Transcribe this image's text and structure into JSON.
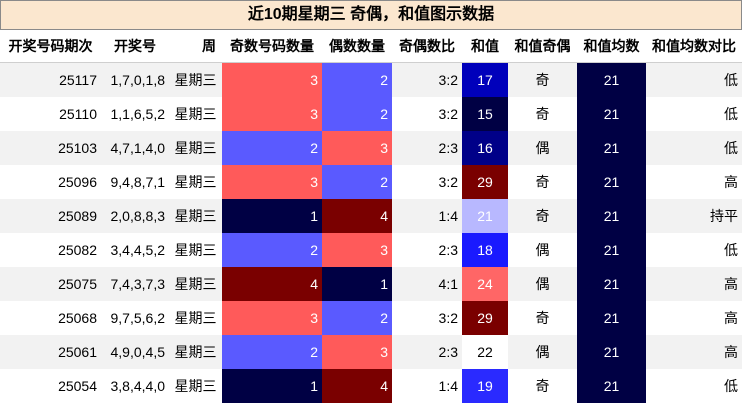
{
  "title": "近10期星期三 奇偶，和值图示数据",
  "headers": [
    "开奖号码期次",
    "开奖号",
    "周",
    "奇数号码数量",
    "偶数数量",
    "奇偶数比",
    "和值",
    "和值奇偶",
    "和值均数",
    "和值均数对比"
  ],
  "colors": {
    "odd_count": {
      "1": "#000044",
      "2": "#5a5aff",
      "3": "#ff5a5a",
      "4": "#7a0000"
    },
    "even_count": {
      "1": "#000044",
      "2": "#5a5aff",
      "3": "#ff5a5a",
      "4": "#7a0000"
    },
    "sum": {
      "15": "#000044",
      "16": "#000088",
      "17": "#0000bb",
      "18": "#1a1aff",
      "19": "#2a2aff",
      "21": "#b8b8ff",
      "22": "#ffffff",
      "24": "#ff6666",
      "29": "#7a0000"
    },
    "avg": "#000044"
  },
  "rows": [
    {
      "issue": "25117",
      "numbers": "1,7,0,1,8",
      "weekday": "星期三",
      "odd": "3",
      "even": "2",
      "ratio": "3:2",
      "sum": "17",
      "sum_parity": "奇",
      "avg": "21",
      "compare": "低"
    },
    {
      "issue": "25110",
      "numbers": "1,1,6,5,2",
      "weekday": "星期三",
      "odd": "3",
      "even": "2",
      "ratio": "3:2",
      "sum": "15",
      "sum_parity": "奇",
      "avg": "21",
      "compare": "低"
    },
    {
      "issue": "25103",
      "numbers": "4,7,1,4,0",
      "weekday": "星期三",
      "odd": "2",
      "even": "3",
      "ratio": "2:3",
      "sum": "16",
      "sum_parity": "偶",
      "avg": "21",
      "compare": "低"
    },
    {
      "issue": "25096",
      "numbers": "9,4,8,7,1",
      "weekday": "星期三",
      "odd": "3",
      "even": "2",
      "ratio": "3:2",
      "sum": "29",
      "sum_parity": "奇",
      "avg": "21",
      "compare": "高"
    },
    {
      "issue": "25089",
      "numbers": "2,0,8,8,3",
      "weekday": "星期三",
      "odd": "1",
      "even": "4",
      "ratio": "1:4",
      "sum": "21",
      "sum_parity": "奇",
      "avg": "21",
      "compare": "持平"
    },
    {
      "issue": "25082",
      "numbers": "3,4,4,5,2",
      "weekday": "星期三",
      "odd": "2",
      "even": "3",
      "ratio": "2:3",
      "sum": "18",
      "sum_parity": "偶",
      "avg": "21",
      "compare": "低"
    },
    {
      "issue": "25075",
      "numbers": "7,4,3,7,3",
      "weekday": "星期三",
      "odd": "4",
      "even": "1",
      "ratio": "4:1",
      "sum": "24",
      "sum_parity": "偶",
      "avg": "21",
      "compare": "高"
    },
    {
      "issue": "25068",
      "numbers": "9,7,5,6,2",
      "weekday": "星期三",
      "odd": "3",
      "even": "2",
      "ratio": "3:2",
      "sum": "29",
      "sum_parity": "奇",
      "avg": "21",
      "compare": "高"
    },
    {
      "issue": "25061",
      "numbers": "4,9,0,4,5",
      "weekday": "星期三",
      "odd": "2",
      "even": "3",
      "ratio": "2:3",
      "sum": "22",
      "sum_parity": "偶",
      "avg": "21",
      "compare": "高"
    },
    {
      "issue": "25054",
      "numbers": "3,8,4,4,0",
      "weekday": "星期三",
      "odd": "1",
      "even": "4",
      "ratio": "1:4",
      "sum": "19",
      "sum_parity": "奇",
      "avg": "21",
      "compare": "低"
    }
  ]
}
